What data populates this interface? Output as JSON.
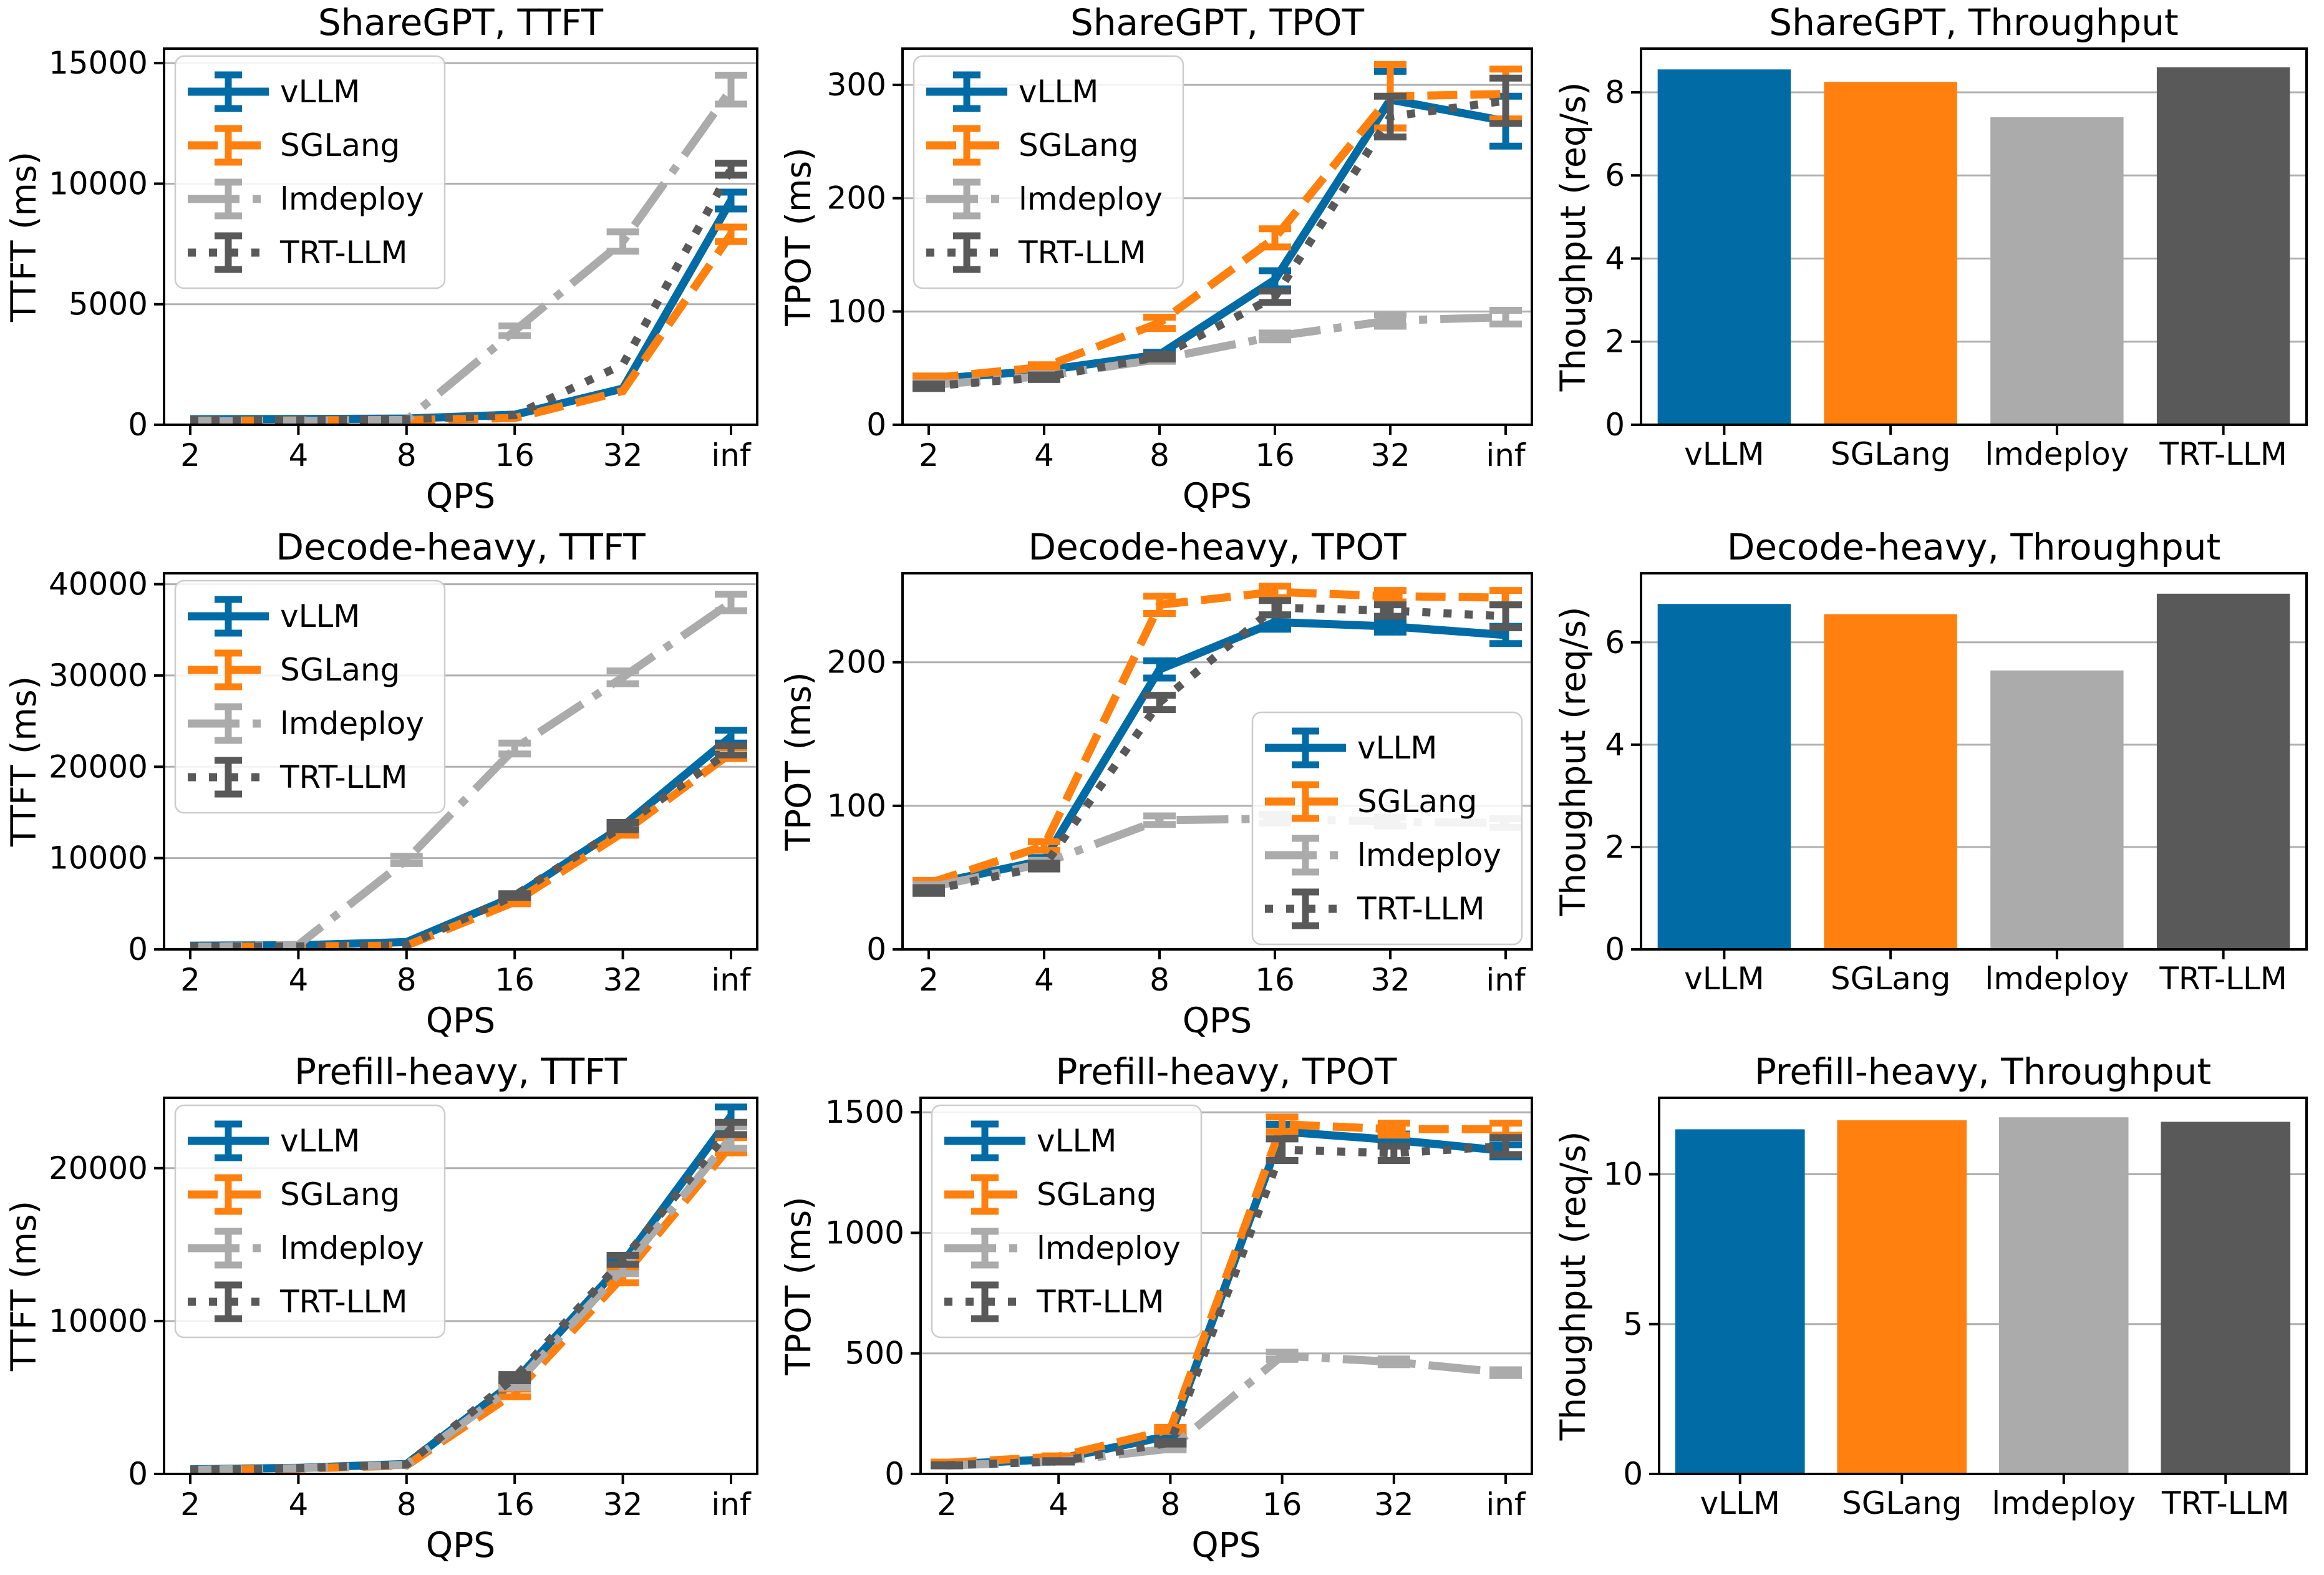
{
  "figure": {
    "background": "#ffffff",
    "frameworks": [
      "vLLM",
      "SGLang",
      "lmdeploy",
      "TRT-LLM"
    ],
    "colors": {
      "vLLM": "#006BA4",
      "SGLang": "#FF800E",
      "lmdeploy": "#ABABAB",
      "TRT-LLM": "#595959"
    },
    "line_styles": {
      "vLLM": "solid",
      "SGLang": "dashed",
      "lmdeploy": "dashdot",
      "TRT-LLM": "dotted"
    },
    "grid_color": "#b0b0b0",
    "spine_color": "#000000"
  },
  "chart_data": [
    {
      "type": "line",
      "title": "ShareGPT, TTFT",
      "xlabel": "QPS",
      "ylabel": "TTFT (ms)",
      "x_tick_labels": [
        "2",
        "4",
        "8",
        "16",
        "32",
        "inf"
      ],
      "yticks": [
        0,
        5000,
        10000,
        15000
      ],
      "ylim": [
        0,
        15600
      ],
      "legend_pos": "upper-left",
      "grid": true,
      "series": [
        {
          "name": "vLLM",
          "values": [
            230,
            240,
            260,
            420,
            1500,
            9300
          ],
          "errors": [
            0,
            0,
            0,
            0,
            0,
            350
          ]
        },
        {
          "name": "SGLang",
          "values": [
            170,
            180,
            200,
            280,
            1400,
            7900
          ],
          "errors": [
            0,
            0,
            0,
            0,
            0,
            300
          ]
        },
        {
          "name": "lmdeploy",
          "values": [
            150,
            160,
            200,
            3900,
            7600,
            13900
          ],
          "errors": [
            0,
            0,
            0,
            200,
            400,
            600
          ]
        },
        {
          "name": "TRT-LLM",
          "values": [
            200,
            210,
            230,
            400,
            2500,
            10600
          ],
          "errors": [
            0,
            0,
            0,
            0,
            0,
            250
          ]
        }
      ]
    },
    {
      "type": "line",
      "title": "ShareGPT, TPOT",
      "xlabel": "QPS",
      "ylabel": "TPOT (ms)",
      "x_tick_labels": [
        "2",
        "4",
        "8",
        "16",
        "32",
        "inf"
      ],
      "yticks": [
        0,
        100,
        200,
        300
      ],
      "ylim": [
        0,
        332
      ],
      "legend_pos": "upper-left",
      "grid": true,
      "series": [
        {
          "name": "vLLM",
          "values": [
            40,
            48,
            62,
            128,
            287,
            268
          ],
          "errors": [
            3,
            2,
            2,
            8,
            25,
            22
          ]
        },
        {
          "name": "SGLang",
          "values": [
            41,
            51,
            90,
            165,
            290,
            292
          ],
          "errors": [
            2,
            2,
            5,
            8,
            28,
            22
          ]
        },
        {
          "name": "lmdeploy",
          "values": [
            35,
            43,
            58,
            78,
            92,
            95
          ],
          "errors": [
            2,
            2,
            2,
            3,
            5,
            6
          ]
        },
        {
          "name": "TRT-LLM",
          "values": [
            34,
            42,
            60,
            113,
            272,
            286
          ],
          "errors": [
            2,
            2,
            2,
            5,
            18,
            20
          ]
        }
      ]
    },
    {
      "type": "bar",
      "title": "ShareGPT, Throughput",
      "xlabel": "",
      "ylabel": "Thoughput (req/s)",
      "categories": [
        "vLLM",
        "SGLang",
        "lmdeploy",
        "TRT-LLM"
      ],
      "values": [
        8.55,
        8.25,
        7.4,
        8.6
      ],
      "yticks": [
        0,
        2,
        4,
        6,
        8
      ],
      "ylim": [
        0,
        9.05
      ],
      "legend_pos": "none",
      "grid": true
    },
    {
      "type": "line",
      "title": "Decode-heavy, TTFT",
      "xlabel": "QPS",
      "ylabel": "TTFT (ms)",
      "x_tick_labels": [
        "2",
        "4",
        "8",
        "16",
        "32",
        "inf"
      ],
      "yticks": [
        0,
        10000,
        20000,
        30000,
        40000
      ],
      "ylim": [
        0,
        41200
      ],
      "legend_pos": "upper-left",
      "grid": true,
      "series": [
        {
          "name": "vLLM",
          "values": [
            400,
            450,
            800,
            5800,
            13500,
            23300
          ],
          "errors": [
            0,
            0,
            0,
            200,
            300,
            700
          ]
        },
        {
          "name": "SGLang",
          "values": [
            300,
            320,
            420,
            5200,
            12800,
            21500
          ],
          "errors": [
            0,
            0,
            0,
            200,
            300,
            600
          ]
        },
        {
          "name": "lmdeploy",
          "values": [
            250,
            500,
            9800,
            22000,
            29800,
            38000
          ],
          "errors": [
            0,
            0,
            400,
            600,
            700,
            900
          ]
        },
        {
          "name": "TRT-LLM",
          "values": [
            300,
            330,
            450,
            5900,
            13500,
            21800
          ],
          "errors": [
            0,
            0,
            0,
            200,
            400,
            500
          ]
        }
      ]
    },
    {
      "type": "line",
      "title": "Decode-heavy, TPOT",
      "xlabel": "QPS",
      "ylabel": "TPOT (ms)",
      "x_tick_labels": [
        "2",
        "4",
        "8",
        "16",
        "32",
        "inf"
      ],
      "yticks": [
        0,
        100,
        200
      ],
      "ylim": [
        0,
        262
      ],
      "legend_pos": "center-right",
      "grid": true,
      "series": [
        {
          "name": "vLLM",
          "values": [
            45,
            62,
            195,
            228,
            225,
            219
          ],
          "errors": [
            2,
            2,
            6,
            5,
            4,
            6
          ]
        },
        {
          "name": "SGLang",
          "values": [
            46,
            72,
            240,
            249,
            246,
            245
          ],
          "errors": [
            2,
            3,
            6,
            4,
            4,
            5
          ]
        },
        {
          "name": "lmdeploy",
          "values": [
            43,
            60,
            90,
            91,
            89,
            88
          ],
          "errors": [
            2,
            2,
            3,
            3,
            3,
            3
          ]
        },
        {
          "name": "TRT-LLM",
          "values": [
            41,
            58,
            172,
            238,
            236,
            232
          ],
          "errors": [
            2,
            2,
            5,
            5,
            4,
            8
          ]
        }
      ]
    },
    {
      "type": "bar",
      "title": "Decode-heavy, Throughput",
      "xlabel": "",
      "ylabel": "Thoughput (req/s)",
      "categories": [
        "vLLM",
        "SGLang",
        "lmdeploy",
        "TRT-LLM"
      ],
      "values": [
        6.75,
        6.55,
        5.45,
        6.95
      ],
      "yticks": [
        0,
        2,
        4,
        6
      ],
      "ylim": [
        0,
        7.35
      ],
      "legend_pos": "none",
      "grid": true
    },
    {
      "type": "line",
      "title": "Prefill-heavy, TTFT",
      "xlabel": "QPS",
      "ylabel": "TTFT (ms)",
      "x_tick_labels": [
        "2",
        "4",
        "8",
        "16",
        "32",
        "inf"
      ],
      "yticks": [
        0,
        10000,
        20000
      ],
      "ylim": [
        0,
        24600
      ],
      "legend_pos": "upper-left",
      "grid": true,
      "series": [
        {
          "name": "vLLM",
          "values": [
            300,
            400,
            650,
            6050,
            13800,
            23400
          ],
          "errors": [
            0,
            0,
            0,
            150,
            300,
            600
          ]
        },
        {
          "name": "SGLang",
          "values": [
            250,
            350,
            550,
            5300,
            12900,
            21500
          ],
          "errors": [
            0,
            0,
            0,
            250,
            400,
            500
          ]
        },
        {
          "name": "lmdeploy",
          "values": [
            260,
            380,
            600,
            5800,
            13400,
            22000
          ],
          "errors": [
            0,
            0,
            0,
            150,
            300,
            700
          ]
        },
        {
          "name": "TRT-LLM",
          "values": [
            280,
            380,
            620,
            6300,
            14000,
            22600
          ],
          "errors": [
            0,
            0,
            0,
            200,
            300,
            400
          ]
        }
      ]
    },
    {
      "type": "line",
      "title": "Prefill-heavy, TPOT",
      "xlabel": "QPS",
      "ylabel": "TPOT (ms)",
      "x_tick_labels": [
        "2",
        "4",
        "8",
        "16",
        "32",
        "inf"
      ],
      "yticks": [
        0,
        500,
        1000,
        1500
      ],
      "ylim": [
        0,
        1560
      ],
      "legend_pos": "upper-left",
      "grid": true,
      "series": [
        {
          "name": "vLLM",
          "values": [
            40,
            62,
            160,
            1420,
            1385,
            1340
          ],
          "errors": [
            3,
            3,
            8,
            30,
            25,
            25
          ]
        },
        {
          "name": "SGLang",
          "values": [
            46,
            72,
            185,
            1450,
            1430,
            1430
          ],
          "errors": [
            3,
            3,
            8,
            30,
            25,
            25
          ]
        },
        {
          "name": "lmdeploy",
          "values": [
            35,
            52,
            105,
            490,
            465,
            420
          ],
          "errors": [
            2,
            3,
            5,
            15,
            12,
            12
          ]
        },
        {
          "name": "TRT-LLM",
          "values": [
            36,
            52,
            130,
            1345,
            1330,
            1360
          ],
          "errors": [
            2,
            3,
            6,
            45,
            30,
            35
          ]
        }
      ]
    },
    {
      "type": "bar",
      "title": "Prefill-heavy, Throughput",
      "xlabel": "",
      "ylabel": "Thoughput (req/s)",
      "categories": [
        "vLLM",
        "SGLang",
        "lmdeploy",
        "TRT-LLM"
      ],
      "values": [
        11.5,
        11.8,
        11.9,
        11.75
      ],
      "yticks": [
        0,
        5,
        10
      ],
      "ylim": [
        0,
        12.55
      ],
      "legend_pos": "none",
      "grid": true
    }
  ]
}
